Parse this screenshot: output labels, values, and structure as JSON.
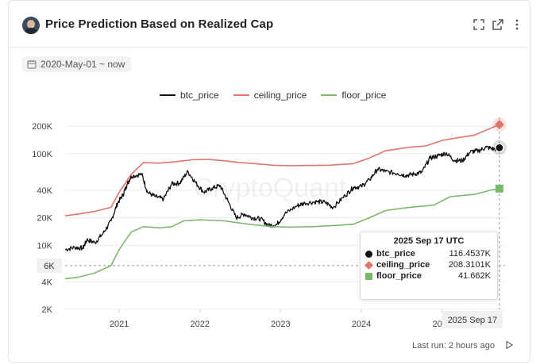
{
  "header": {
    "title": "Price Prediction Based on Realized Cap",
    "icons": [
      "expand-icon",
      "open-external-icon",
      "more-icon"
    ]
  },
  "date_range": {
    "label": "2020-May-01 ~ now"
  },
  "watermark": "CryptoQuant",
  "tooltip": {
    "date": "2025 Sep 17 UTC",
    "rows": [
      {
        "name": "btc_price",
        "value": "116.4537K"
      },
      {
        "name": "ceiling_price",
        "value": "208.3101K"
      },
      {
        "name": "floor_price",
        "value": "41.662K"
      }
    ]
  },
  "crosshair": {
    "y_label": "6K",
    "x_label": "2025 Sep 17"
  },
  "footer": {
    "last_run": "Last run: 2 hours ago"
  },
  "chart_data": {
    "type": "line",
    "title": "Price Prediction Based on Realized Cap",
    "yscale": "log",
    "ylim": [
      2000,
      250000
    ],
    "xlim": [
      2020.33,
      2025.78
    ],
    "x_ticks": [
      2021,
      2022,
      2023,
      2024,
      2025
    ],
    "x_tick_labels": [
      "2021",
      "2022",
      "2023",
      "2024",
      "2025"
    ],
    "y_ticks": [
      2000,
      4000,
      6000,
      10000,
      20000,
      40000,
      100000,
      200000
    ],
    "y_tick_labels": [
      "2K",
      "4K",
      "6K",
      "10K",
      "20K",
      "40K",
      "100K",
      "200K"
    ],
    "series": [
      {
        "name": "btc_price",
        "color": "#111111",
        "points": [
          [
            2020.33,
            9000
          ],
          [
            2020.45,
            9500
          ],
          [
            2020.55,
            9300
          ],
          [
            2020.6,
            11500
          ],
          [
            2020.7,
            10700
          ],
          [
            2020.8,
            13500
          ],
          [
            2020.9,
            18500
          ],
          [
            2020.98,
            29000
          ],
          [
            2021.05,
            36000
          ],
          [
            2021.1,
            47000
          ],
          [
            2021.15,
            57000
          ],
          [
            2021.28,
            60000
          ],
          [
            2021.35,
            38000
          ],
          [
            2021.45,
            34000
          ],
          [
            2021.55,
            32000
          ],
          [
            2021.65,
            47000
          ],
          [
            2021.75,
            48000
          ],
          [
            2021.85,
            64000
          ],
          [
            2021.95,
            48000
          ],
          [
            2022.05,
            38000
          ],
          [
            2022.15,
            42000
          ],
          [
            2022.25,
            45000
          ],
          [
            2022.35,
            30000
          ],
          [
            2022.45,
            20000
          ],
          [
            2022.55,
            22000
          ],
          [
            2022.65,
            20000
          ],
          [
            2022.75,
            19500
          ],
          [
            2022.85,
            16500
          ],
          [
            2022.95,
            16800
          ],
          [
            2023.05,
            22000
          ],
          [
            2023.2,
            27000
          ],
          [
            2023.3,
            29000
          ],
          [
            2023.45,
            30000
          ],
          [
            2023.55,
            29500
          ],
          [
            2023.65,
            26000
          ],
          [
            2023.8,
            35000
          ],
          [
            2023.9,
            43000
          ],
          [
            2024.0,
            44000
          ],
          [
            2024.1,
            52000
          ],
          [
            2024.2,
            68000
          ],
          [
            2024.3,
            64000
          ],
          [
            2024.45,
            61000
          ],
          [
            2024.55,
            58000
          ],
          [
            2024.65,
            60000
          ],
          [
            2024.75,
            63000
          ],
          [
            2024.85,
            90000
          ],
          [
            2024.95,
            95000
          ],
          [
            2025.05,
            102000
          ],
          [
            2025.15,
            85000
          ],
          [
            2025.25,
            84000
          ],
          [
            2025.35,
            105000
          ],
          [
            2025.45,
            108000
          ],
          [
            2025.55,
            118000
          ],
          [
            2025.65,
            112000
          ],
          [
            2025.71,
            116453.7
          ]
        ]
      },
      {
        "name": "ceiling_price",
        "color": "#e0746a",
        "points": [
          [
            2020.33,
            21000
          ],
          [
            2020.5,
            22000
          ],
          [
            2020.7,
            23500
          ],
          [
            2020.9,
            26000
          ],
          [
            2021.0,
            38000
          ],
          [
            2021.15,
            60000
          ],
          [
            2021.3,
            80000
          ],
          [
            2021.5,
            79000
          ],
          [
            2021.7,
            82000
          ],
          [
            2021.9,
            86000
          ],
          [
            2022.1,
            87000
          ],
          [
            2022.3,
            84000
          ],
          [
            2022.5,
            80000
          ],
          [
            2022.7,
            78000
          ],
          [
            2022.9,
            75000
          ],
          [
            2023.1,
            74000
          ],
          [
            2023.3,
            74500
          ],
          [
            2023.6,
            75000
          ],
          [
            2023.9,
            78000
          ],
          [
            2024.1,
            90000
          ],
          [
            2024.3,
            108000
          ],
          [
            2024.6,
            118000
          ],
          [
            2024.8,
            122000
          ],
          [
            2025.0,
            140000
          ],
          [
            2025.2,
            150000
          ],
          [
            2025.4,
            160000
          ],
          [
            2025.6,
            190000
          ],
          [
            2025.71,
            208310.1
          ]
        ]
      },
      {
        "name": "floor_price",
        "color": "#79b96a",
        "points": [
          [
            2020.33,
            4300
          ],
          [
            2020.5,
            4500
          ],
          [
            2020.7,
            5000
          ],
          [
            2020.9,
            6000
          ],
          [
            2021.0,
            9000
          ],
          [
            2021.15,
            14000
          ],
          [
            2021.3,
            16000
          ],
          [
            2021.5,
            15500
          ],
          [
            2021.65,
            16000
          ],
          [
            2021.8,
            18500
          ],
          [
            2022.0,
            19000
          ],
          [
            2022.3,
            18500
          ],
          [
            2022.6,
            17000
          ],
          [
            2022.9,
            16000
          ],
          [
            2023.1,
            15800
          ],
          [
            2023.4,
            16000
          ],
          [
            2023.7,
            16500
          ],
          [
            2023.9,
            17000
          ],
          [
            2024.1,
            20000
          ],
          [
            2024.3,
            24000
          ],
          [
            2024.6,
            26000
          ],
          [
            2024.9,
            27500
          ],
          [
            2025.1,
            34000
          ],
          [
            2025.4,
            36000
          ],
          [
            2025.6,
            40000
          ],
          [
            2025.71,
            41662
          ]
        ]
      }
    ]
  }
}
